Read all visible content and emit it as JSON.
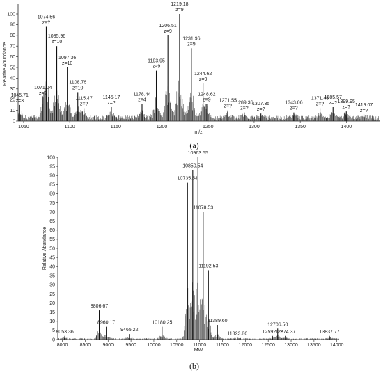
{
  "chart_data": [
    {
      "type": "bar",
      "panel_label": "(a)",
      "xlabel": "m/z",
      "ylabel": "Relative Abundance",
      "xlim": [
        1044,
        1436
      ],
      "ylim": [
        0,
        100
      ],
      "xticks": [
        "1050",
        "1100",
        "1150",
        "1200",
        "1250",
        "1300",
        "1350",
        "1400"
      ],
      "yticks": [
        "0",
        "10",
        "20",
        "30",
        "40",
        "50",
        "60",
        "70",
        "80",
        "90",
        "100"
      ],
      "peaks": [
        {
          "x": 1045.71,
          "y": 15,
          "label": "1045.71",
          "charge": "z=3"
        },
        {
          "x": 1071.04,
          "y": 22,
          "label": "1071.04",
          "charge": "z=?"
        },
        {
          "x": 1074.56,
          "y": 88,
          "label": "1074.56",
          "charge": "z=?"
        },
        {
          "x": 1085.96,
          "y": 70,
          "label": "1085.96",
          "charge": "z=10"
        },
        {
          "x": 1097.36,
          "y": 50,
          "label": "1097.36",
          "charge": "z=10"
        },
        {
          "x": 1108.76,
          "y": 27,
          "label": "1108.76",
          "charge": "z=10"
        },
        {
          "x": 1115.47,
          "y": 12,
          "label": "1115.47",
          "charge": "z=?"
        },
        {
          "x": 1145.17,
          "y": 13,
          "label": "1145.17",
          "charge": "z=?"
        },
        {
          "x": 1178.44,
          "y": 16,
          "label": "1178.44",
          "charge": "z=4"
        },
        {
          "x": 1193.95,
          "y": 47,
          "label": "1193.95",
          "charge": "z=9"
        },
        {
          "x": 1206.51,
          "y": 80,
          "label": "1206.51",
          "charge": "z=9"
        },
        {
          "x": 1219.18,
          "y": 100,
          "label": "1219.18",
          "charge": "z=9"
        },
        {
          "x": 1231.96,
          "y": 68,
          "label": "1231.96",
          "charge": "z=9"
        },
        {
          "x": 1244.62,
          "y": 35,
          "label": "1244.62",
          "charge": "z=9"
        },
        {
          "x": 1248.62,
          "y": 16,
          "label": "1248.62",
          "charge": "z=9"
        },
        {
          "x": 1271.55,
          "y": 10,
          "label": "1271.55",
          "charge": "z=?"
        },
        {
          "x": 1289.36,
          "y": 8,
          "label": "1289.36",
          "charge": "z=?"
        },
        {
          "x": 1307.35,
          "y": 7,
          "label": "1307.35",
          "charge": "z=?"
        },
        {
          "x": 1343.06,
          "y": 8,
          "label": "1343.06",
          "charge": "z=?"
        },
        {
          "x": 1371.45,
          "y": 12,
          "label": "1371.45",
          "charge": "z=?"
        },
        {
          "x": 1385.57,
          "y": 13,
          "label": "1385.57",
          "charge": "z=?"
        },
        {
          "x": 1399.95,
          "y": 9,
          "label": "1399.95",
          "charge": "z=?"
        },
        {
          "x": 1419.07,
          "y": 6,
          "label": "1419.07",
          "charge": "z=?"
        }
      ]
    },
    {
      "type": "bar",
      "panel_label": "(b)",
      "xlabel": "MW",
      "ylabel": "Relative Abundance",
      "xlim": [
        7900,
        14050
      ],
      "ylim": [
        0,
        100
      ],
      "xticks": [
        "8000",
        "8500",
        "9000",
        "9500",
        "10000",
        "10500",
        "11000",
        "11500",
        "12000",
        "12500",
        "13000",
        "13500",
        "14000"
      ],
      "yticks": [
        "0",
        "5",
        "10",
        "15",
        "20",
        "25",
        "30",
        "35",
        "40",
        "45",
        "50",
        "55",
        "60",
        "65",
        "70",
        "75",
        "80",
        "85",
        "90",
        "95",
        "100"
      ],
      "peaks": [
        {
          "x": 8053.36,
          "y": 2,
          "label": "8053.36"
        },
        {
          "x": 8806.67,
          "y": 16,
          "label": "8806.67"
        },
        {
          "x": 8960.17,
          "y": 7,
          "label": "8960.17"
        },
        {
          "x": 9465.22,
          "y": 3,
          "label": "9465.22"
        },
        {
          "x": 10180.25,
          "y": 7,
          "label": "10180.25"
        },
        {
          "x": 10735.54,
          "y": 86,
          "label": "10735.54"
        },
        {
          "x": 10850.54,
          "y": 93,
          "label": "10850.54"
        },
        {
          "x": 10963.55,
          "y": 100,
          "label": "10963.55"
        },
        {
          "x": 11078.53,
          "y": 70,
          "label": "11078.53"
        },
        {
          "x": 11192.53,
          "y": 38,
          "label": "11192.53"
        },
        {
          "x": 11389.6,
          "y": 8,
          "label": "11389.60"
        },
        {
          "x": 11823.86,
          "y": 1,
          "label": "11823.86"
        },
        {
          "x": 12592.72,
          "y": 2,
          "label": "12592.72"
        },
        {
          "x": 12706.5,
          "y": 6,
          "label": "12706.50"
        },
        {
          "x": 12874.37,
          "y": 2,
          "label": "12874.37"
        },
        {
          "x": 13837.77,
          "y": 2,
          "label": "13837.77"
        }
      ]
    }
  ]
}
